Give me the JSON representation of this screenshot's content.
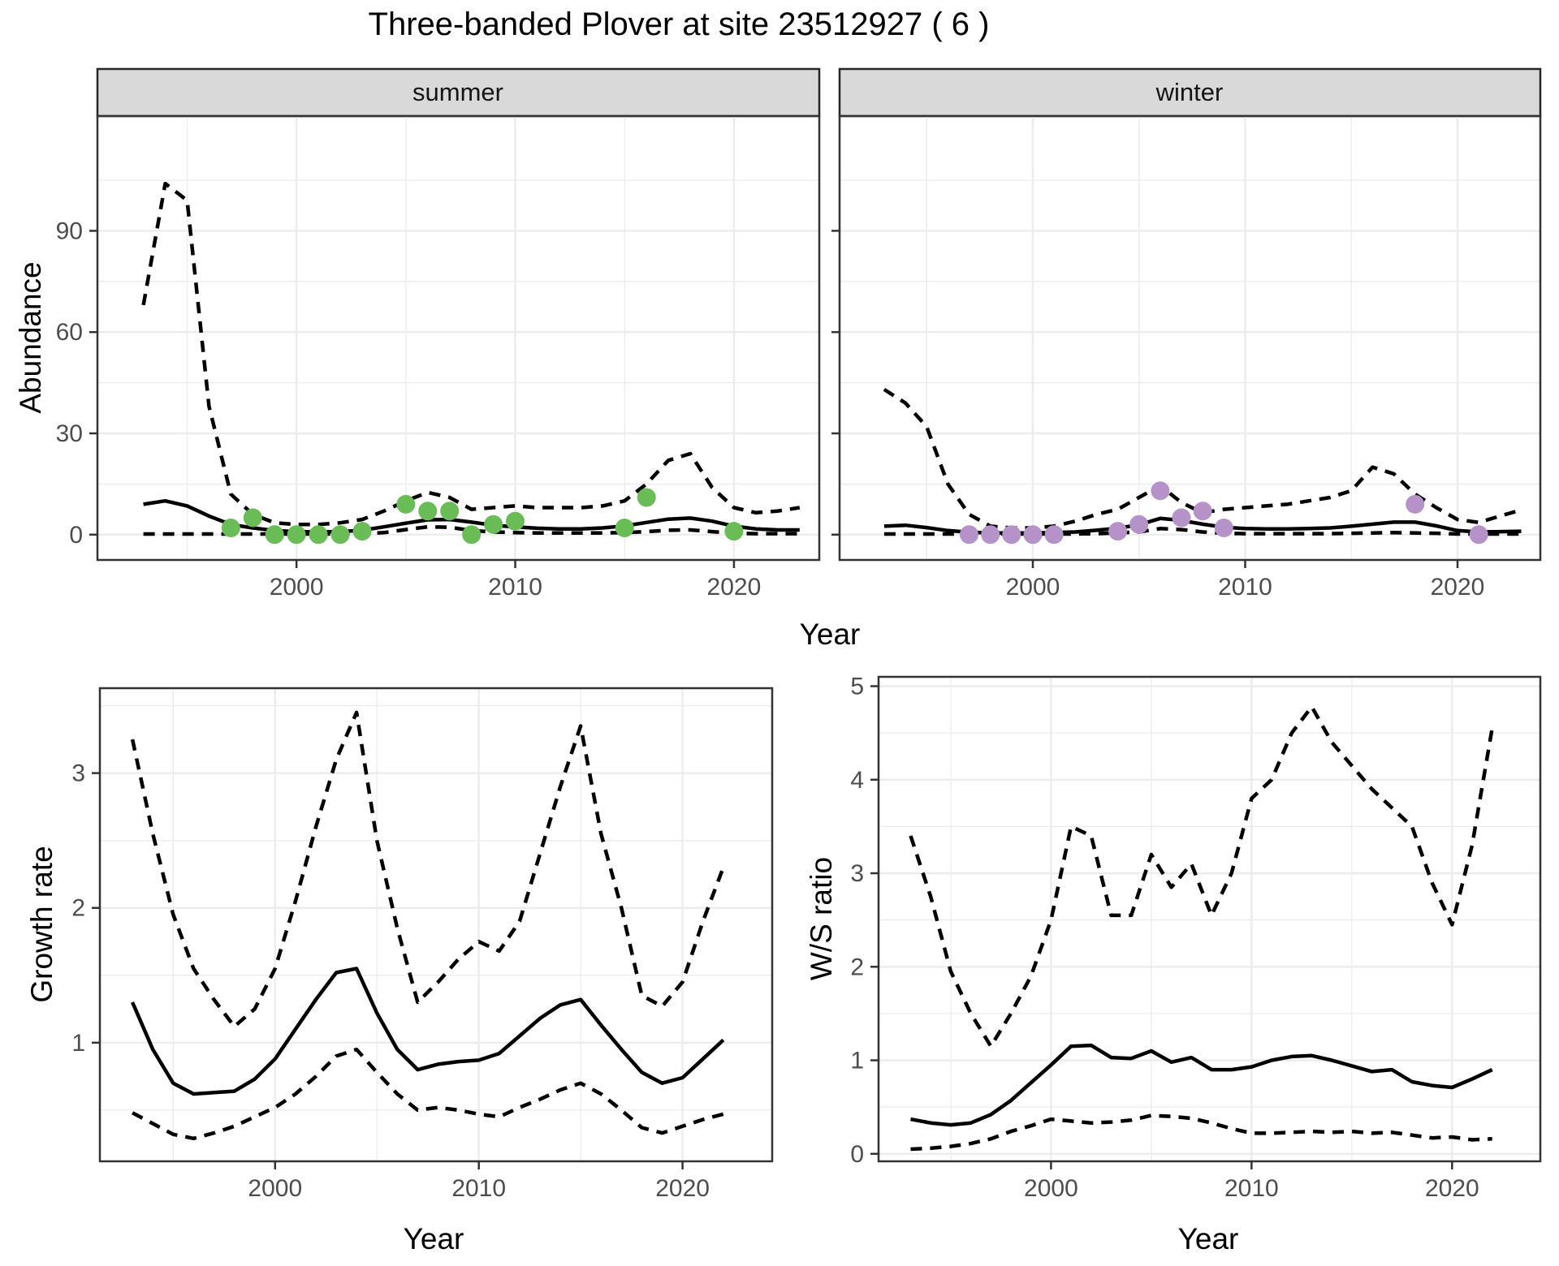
{
  "title": "Three-banded Plover at site 23512927 ( 6 )",
  "facets": [
    {
      "label": "summer"
    },
    {
      "label": "winter"
    }
  ],
  "axes": {
    "abundance_label": "Abundance",
    "year_label": "Year",
    "growth_label": "Growth rate",
    "ws_label": "W/S ratio"
  },
  "colors": {
    "summer_point": "#6abd56",
    "winter_point": "#b592c8",
    "line": "#000000",
    "grid": "#ececec",
    "panel_border": "#333333",
    "strip_fill": "#d9d9d9",
    "strip_border": "#262626",
    "axis_text": "#4d4d4d"
  },
  "chart_data": [
    {
      "id": "abundance_summer",
      "type": "line",
      "facet": "summer",
      "xlabel": "Year",
      "ylabel": "Abundance",
      "xlim": [
        1990.9,
        2023.9
      ],
      "ylim": [
        -7.5,
        124
      ],
      "xticks": [
        2000,
        2010,
        2020
      ],
      "yticks": [
        0,
        30,
        60,
        90
      ],
      "xminor": [
        1995,
        2005,
        2015
      ],
      "yminor": [
        15,
        45,
        75,
        105
      ],
      "grid": true,
      "legend": "none",
      "x": [
        1993,
        1994,
        1995,
        1996,
        1997,
        1998,
        1999,
        2000,
        2001,
        2002,
        2003,
        2004,
        2005,
        2006,
        2007,
        2008,
        2009,
        2010,
        2011,
        2012,
        2013,
        2014,
        2015,
        2016,
        2017,
        2018,
        2019,
        2020,
        2021,
        2022,
        2023
      ],
      "series": [
        {
          "name": "fit",
          "style": "solid",
          "values": [
            9,
            10,
            8.5,
            5.5,
            3,
            2,
            1.2,
            0.9,
            0.8,
            0.9,
            1.3,
            2.3,
            3.4,
            4.4,
            4.5,
            3.7,
            2.8,
            2.3,
            1.9,
            1.7,
            1.7,
            2,
            2.6,
            3.6,
            4.6,
            4.9,
            4,
            2.5,
            1.7,
            1.4,
            1.4
          ]
        },
        {
          "name": "upper_ci",
          "style": "dashed",
          "values": [
            68,
            104,
            99,
            38,
            12,
            6,
            3.5,
            3,
            3,
            3.5,
            4.5,
            7,
            10,
            12.5,
            11,
            7.5,
            8,
            8.5,
            8,
            8,
            8,
            8.5,
            10,
            15,
            22,
            24,
            14,
            8,
            6.5,
            7,
            8
          ]
        },
        {
          "name": "lower_ci",
          "style": "dashed",
          "values": [
            0.2,
            0.2,
            0.2,
            0.2,
            0.2,
            0.2,
            0.2,
            0.2,
            0.2,
            0.2,
            0.3,
            0.6,
            1.5,
            2.3,
            2.2,
            1.2,
            0.8,
            0.6,
            0.5,
            0.5,
            0.5,
            0.5,
            0.6,
            0.9,
            1.3,
            1.4,
            0.9,
            0.4,
            0.3,
            0.3,
            0.3
          ]
        }
      ],
      "points": {
        "name": "observed_counts",
        "color": "#6abd56",
        "x": [
          1997,
          1998,
          1999,
          2000,
          2001,
          2002,
          2003,
          2005,
          2006,
          2007,
          2008,
          2009,
          2010,
          2015,
          2016,
          2020
        ],
        "y": [
          2,
          5,
          0,
          0,
          0,
          0,
          1,
          9,
          7,
          7,
          0,
          3,
          4,
          2,
          11,
          1
        ]
      }
    },
    {
      "id": "abundance_winter",
      "type": "line",
      "facet": "winter",
      "xlabel": "Year",
      "ylabel": "Abundance",
      "xlim": [
        1990.9,
        2023.9
      ],
      "ylim": [
        -7.5,
        124
      ],
      "xticks": [
        2000,
        2010,
        2020
      ],
      "yticks": [
        0,
        30,
        60,
        90
      ],
      "xminor": [
        1995,
        2005,
        2015
      ],
      "yminor": [
        15,
        45,
        75,
        105
      ],
      "grid": true,
      "legend": "none",
      "x": [
        1993,
        1994,
        1995,
        1996,
        1997,
        1998,
        1999,
        2000,
        2001,
        2002,
        2003,
        2004,
        2005,
        2006,
        2007,
        2008,
        2009,
        2010,
        2011,
        2012,
        2013,
        2014,
        2015,
        2016,
        2017,
        2018,
        2019,
        2020,
        2021,
        2022,
        2023
      ],
      "series": [
        {
          "name": "fit",
          "style": "solid",
          "values": [
            2.5,
            2.8,
            2.1,
            1.2,
            0.7,
            0.5,
            0.5,
            0.5,
            0.6,
            0.8,
            1.3,
            1.9,
            2.9,
            4.8,
            4.2,
            3.1,
            2.2,
            1.8,
            1.7,
            1.7,
            1.8,
            2,
            2.5,
            3.1,
            3.7,
            3.7,
            2.6,
            1.2,
            0.8,
            0.9,
            1
          ]
        },
        {
          "name": "upper_ci",
          "style": "dashed",
          "values": [
            43,
            39,
            32,
            15,
            6,
            2.5,
            2,
            2,
            2.5,
            4,
            6,
            7.5,
            11,
            14.5,
            9.5,
            6.5,
            7.5,
            8,
            8.5,
            9,
            10,
            11,
            13,
            20,
            18,
            12,
            8,
            4.5,
            3.6,
            5.5,
            7.3
          ]
        },
        {
          "name": "lower_ci",
          "style": "dashed",
          "values": [
            0.2,
            0.2,
            0.2,
            0.2,
            0.2,
            0.2,
            0.2,
            0.2,
            0.2,
            0.2,
            0.3,
            0.5,
            0.8,
            1.8,
            1.5,
            0.8,
            0.4,
            0.3,
            0.3,
            0.3,
            0.3,
            0.3,
            0.4,
            0.5,
            0.6,
            0.5,
            0.4,
            0.2,
            0.2,
            0.2,
            0.2
          ]
        }
      ],
      "points": {
        "name": "observed_counts",
        "color": "#b592c8",
        "x": [
          1997,
          1998,
          1999,
          2000,
          2001,
          2004,
          2005,
          2006,
          2007,
          2008,
          2009,
          2018,
          2021
        ],
        "y": [
          0,
          0,
          0,
          0,
          0,
          1,
          3,
          13,
          5,
          7,
          2,
          9,
          0
        ]
      }
    },
    {
      "id": "growth_rate",
      "type": "line",
      "xlabel": "Year",
      "ylabel": "Growth rate",
      "xlim": [
        1991.4,
        2024.4
      ],
      "ylim": [
        0.12,
        3.63
      ],
      "xticks": [
        2000,
        2010,
        2020
      ],
      "yticks": [
        1,
        2,
        3
      ],
      "xminor": [
        1995,
        2005,
        2015
      ],
      "yminor": [
        0.5,
        1.5,
        2.5,
        3.5
      ],
      "grid": true,
      "legend": "none",
      "x": [
        1993,
        1994,
        1995,
        1996,
        1997,
        1998,
        1999,
        2000,
        2001,
        2002,
        2003,
        2004,
        2005,
        2006,
        2007,
        2008,
        2009,
        2010,
        2011,
        2012,
        2013,
        2014,
        2015,
        2016,
        2017,
        2018,
        2019,
        2020,
        2021,
        2022
      ],
      "series": [
        {
          "name": "fit",
          "style": "solid",
          "values": [
            1.3,
            0.95,
            0.7,
            0.62,
            0.63,
            0.64,
            0.73,
            0.88,
            1.1,
            1.32,
            1.52,
            1.55,
            1.22,
            0.95,
            0.8,
            0.84,
            0.86,
            0.87,
            0.92,
            1.05,
            1.18,
            1.28,
            1.32,
            1.13,
            0.95,
            0.78,
            0.7,
            0.74,
            0.88,
            1.02
          ]
        },
        {
          "name": "upper_ci",
          "style": "dashed",
          "values": [
            3.25,
            2.55,
            1.95,
            1.55,
            1.32,
            1.12,
            1.25,
            1.55,
            2.05,
            2.6,
            3.1,
            3.45,
            2.5,
            1.85,
            1.3,
            1.45,
            1.62,
            1.75,
            1.68,
            1.9,
            2.4,
            2.9,
            3.35,
            2.55,
            2,
            1.35,
            1.27,
            1.45,
            1.9,
            2.3
          ]
        },
        {
          "name": "lower_ci",
          "style": "dashed",
          "values": [
            0.48,
            0.4,
            0.32,
            0.29,
            0.33,
            0.38,
            0.45,
            0.52,
            0.62,
            0.75,
            0.9,
            0.95,
            0.78,
            0.62,
            0.5,
            0.52,
            0.5,
            0.47,
            0.45,
            0.52,
            0.58,
            0.65,
            0.7,
            0.62,
            0.5,
            0.37,
            0.33,
            0.38,
            0.43,
            0.47
          ]
        }
      ]
    },
    {
      "id": "ws_ratio",
      "type": "line",
      "xlabel": "Year",
      "ylabel": "W/S ratio",
      "xlim": [
        1991.4,
        2024.4
      ],
      "ylim": [
        -0.08,
        5.1
      ],
      "xticks": [
        2000,
        2010,
        2020
      ],
      "yticks": [
        0,
        1,
        2,
        3,
        4,
        5
      ],
      "xminor": [
        1995,
        2005,
        2015
      ],
      "yminor": [
        0.5,
        1.5,
        2.5,
        3.5,
        4.5
      ],
      "grid": true,
      "legend": "none",
      "x": [
        1993,
        1994,
        1995,
        1996,
        1997,
        1998,
        1999,
        2000,
        2001,
        2002,
        2003,
        2004,
        2005,
        2006,
        2007,
        2008,
        2009,
        2010,
        2011,
        2012,
        2013,
        2014,
        2015,
        2016,
        2017,
        2018,
        2019,
        2020,
        2021,
        2022
      ],
      "series": [
        {
          "name": "fit",
          "style": "solid",
          "values": [
            0.37,
            0.33,
            0.31,
            0.33,
            0.42,
            0.57,
            0.76,
            0.95,
            1.15,
            1.16,
            1.03,
            1.02,
            1.1,
            0.98,
            1.03,
            0.9,
            0.9,
            0.93,
            1,
            1.04,
            1.05,
            1,
            0.94,
            0.88,
            0.9,
            0.77,
            0.73,
            0.71,
            0.8,
            0.9
          ]
        },
        {
          "name": "upper_ci",
          "style": "dashed",
          "values": [
            3.4,
            2.75,
            1.95,
            1.5,
            1.15,
            1.5,
            1.9,
            2.5,
            3.5,
            3.4,
            2.55,
            2.55,
            3.2,
            2.85,
            3.1,
            2.55,
            3,
            3.8,
            4,
            4.5,
            4.78,
            4.4,
            4.15,
            3.9,
            3.7,
            3.5,
            2.9,
            2.45,
            3.3,
            4.55
          ]
        },
        {
          "name": "lower_ci",
          "style": "dashed",
          "values": [
            0.05,
            0.06,
            0.08,
            0.11,
            0.16,
            0.24,
            0.3,
            0.37,
            0.35,
            0.33,
            0.34,
            0.36,
            0.41,
            0.4,
            0.38,
            0.33,
            0.27,
            0.22,
            0.22,
            0.23,
            0.24,
            0.23,
            0.24,
            0.22,
            0.23,
            0.2,
            0.17,
            0.18,
            0.15,
            0.16
          ]
        }
      ]
    }
  ]
}
